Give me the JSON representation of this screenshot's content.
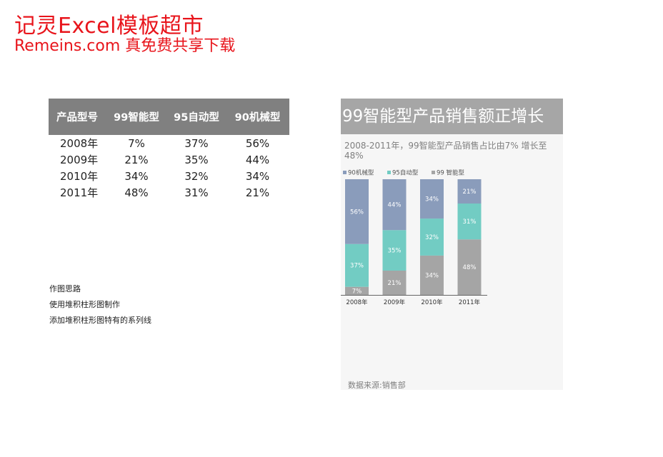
{
  "brand": {
    "line1": "记灵Excel模板超市",
    "line2": "Remeins.com 真免费共享下载"
  },
  "table": {
    "headers": [
      "产品型号",
      "99智能型",
      "95自动型",
      "90机械型"
    ],
    "rows": [
      [
        "2008年",
        "7%",
        "37%",
        "56%"
      ],
      [
        "2009年",
        "21%",
        "35%",
        "44%"
      ],
      [
        "2010年",
        "34%",
        "32%",
        "34%"
      ],
      [
        "2011年",
        "48%",
        "31%",
        "21%"
      ]
    ]
  },
  "notes": [
    "作图思路",
    "使用堆积柱形图制作",
    "添加堆积柱形图特有的系列线"
  ],
  "panel": {
    "title": "99智能型产品销售额正增长",
    "subtitle": "2008-2011年，99智能型产品销售占比由7% 增长至48%",
    "source": "数据来源:销售部"
  },
  "colors": {
    "s99": "#a5a5a5",
    "s95": "#72ccc3",
    "s90": "#8a9cbb",
    "header": "#808080",
    "brand": "#e8141b"
  },
  "chart_data": {
    "type": "bar",
    "stacked": true,
    "categories": [
      "2008年",
      "2009年",
      "2010年",
      "2011年"
    ],
    "series": [
      {
        "name": "99 智能型",
        "values": [
          7,
          21,
          34,
          48
        ],
        "color": "#a5a5a5"
      },
      {
        "name": "95自动型",
        "values": [
          37,
          35,
          32,
          31
        ],
        "color": "#72ccc3"
      },
      {
        "name": "90机械型",
        "values": [
          56,
          44,
          34,
          21
        ],
        "color": "#8a9cbb"
      }
    ],
    "value_suffix": "%",
    "legend_order": [
      "90机械型",
      "95自动型",
      "99 智能型"
    ],
    "legend": "top-left",
    "ylim": [
      0,
      100
    ],
    "grid": false
  }
}
